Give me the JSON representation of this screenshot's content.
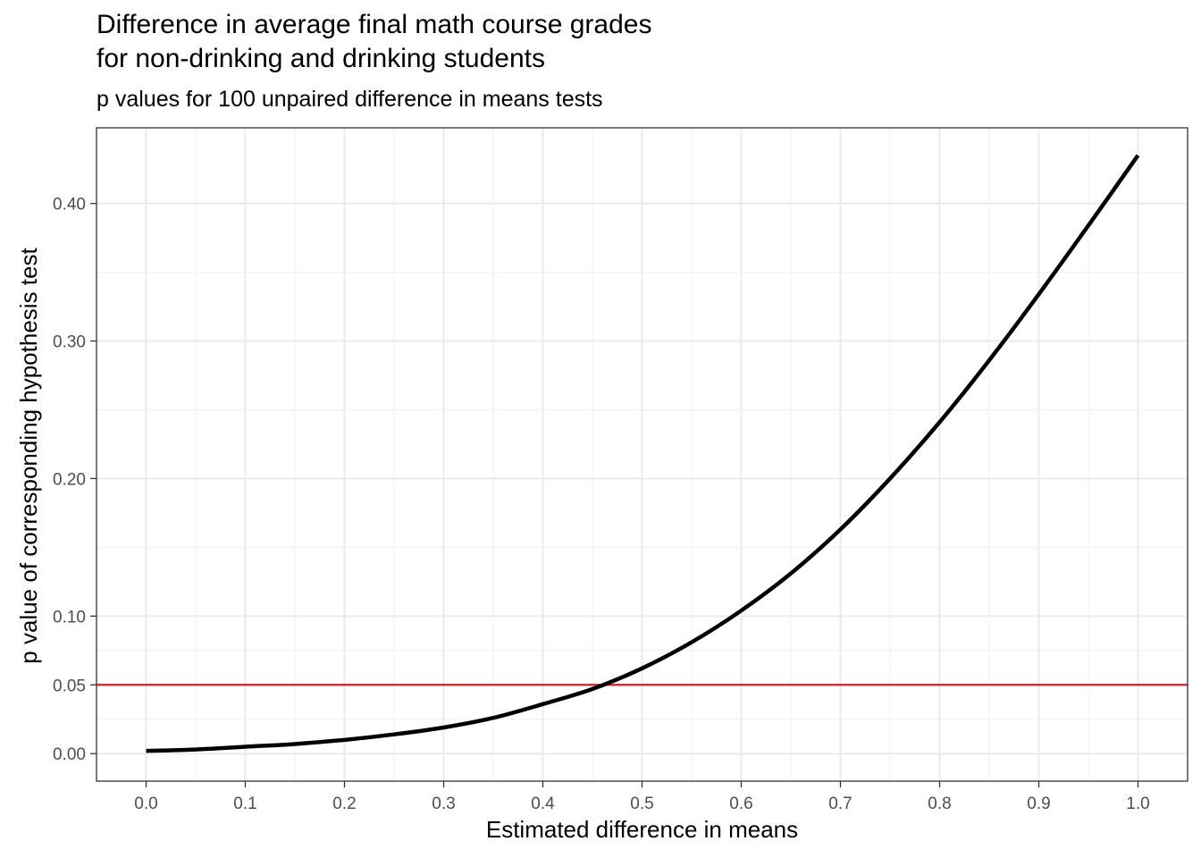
{
  "chart_data": {
    "type": "line",
    "title": [
      "Difference in average final math course grades",
      "for non-drinking and drinking students"
    ],
    "subtitle": "p values for 100 unpaired difference in means tests",
    "xlabel": "Estimated difference in means",
    "ylabel": "p value of corresponding hypothesis test",
    "xlim": [
      -0.05,
      1.05
    ],
    "ylim": [
      -0.02,
      0.455
    ],
    "x_ticks": [
      0.0,
      0.1,
      0.2,
      0.3,
      0.4,
      0.5,
      0.6,
      0.7,
      0.8,
      0.9,
      1.0
    ],
    "x_tick_labels": [
      "0.0",
      "0.1",
      "0.2",
      "0.3",
      "0.4",
      "0.5",
      "0.6",
      "0.7",
      "0.8",
      "0.9",
      "1.0"
    ],
    "y_ticks": [
      0.0,
      0.05,
      0.1,
      0.2,
      0.3,
      0.4
    ],
    "y_tick_labels": [
      "0.00",
      "0.05",
      "0.10",
      "0.20",
      "0.30",
      "0.40"
    ],
    "grid": true,
    "series": [
      {
        "color": "#000000",
        "x": [
          0.0,
          0.05,
          0.1,
          0.15,
          0.2,
          0.25,
          0.3,
          0.35,
          0.4,
          0.45,
          0.5,
          0.55,
          0.6,
          0.65,
          0.7,
          0.75,
          0.8,
          0.85,
          0.9,
          0.95,
          1.0
        ],
        "y": [
          0.002,
          0.003,
          0.005,
          0.007,
          0.01,
          0.014,
          0.019,
          0.026,
          0.036,
          0.047,
          0.062,
          0.081,
          0.104,
          0.131,
          0.163,
          0.2,
          0.241,
          0.286,
          0.334,
          0.384,
          0.435
        ]
      }
    ],
    "reference_lines": [
      {
        "axis": "y",
        "value": 0.05,
        "color": "#e41a1c"
      }
    ]
  }
}
